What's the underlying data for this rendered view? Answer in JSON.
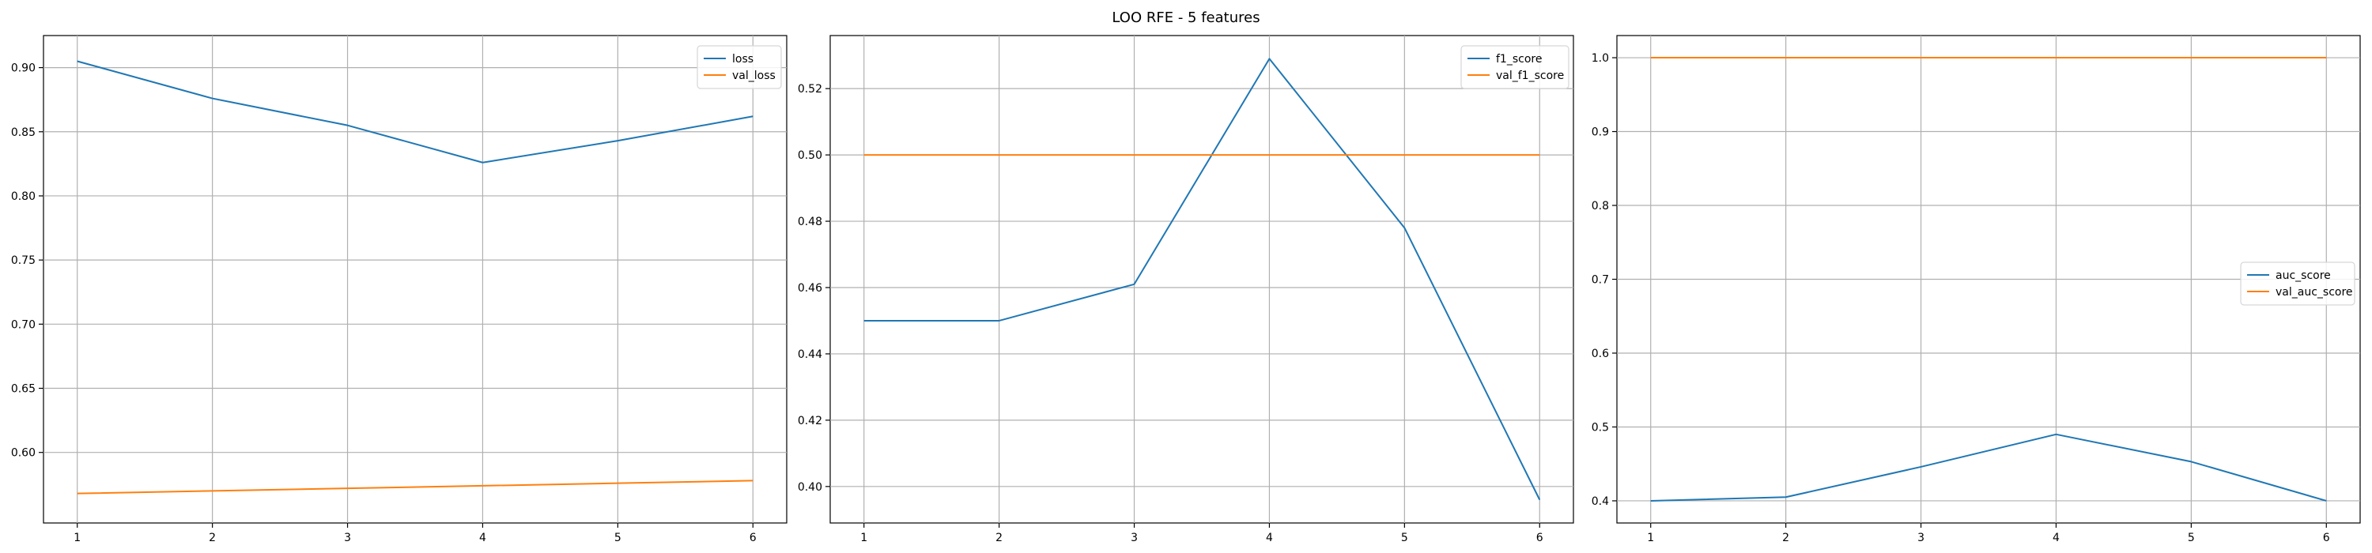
{
  "figure": {
    "suptitle": "LOO RFE - 5 features"
  },
  "chart_data": [
    {
      "type": "line",
      "title": "",
      "xlabel": "",
      "ylabel": "",
      "grid": true,
      "legend_position": "top-right",
      "x": [
        1,
        2,
        3,
        4,
        5,
        6
      ],
      "xlim": [
        0.75,
        6.25
      ],
      "ylim": [
        0.545,
        0.925
      ],
      "xticks": [
        1,
        2,
        3,
        4,
        5,
        6
      ],
      "yticks": [
        0.6,
        0.65,
        0.7,
        0.75,
        0.8,
        0.85,
        0.9
      ],
      "ytick_labels": [
        "0.60",
        "0.65",
        "0.70",
        "0.75",
        "0.80",
        "0.85",
        "0.90"
      ],
      "series": [
        {
          "name": "loss",
          "color": "#1f77b4",
          "values": [
            0.905,
            0.876,
            0.855,
            0.826,
            0.843,
            0.862
          ]
        },
        {
          "name": "val_loss",
          "color": "#ff7f0e",
          "values": [
            0.568,
            0.57,
            0.572,
            0.574,
            0.576,
            0.578
          ]
        }
      ]
    },
    {
      "type": "line",
      "title": "",
      "xlabel": "",
      "ylabel": "",
      "grid": true,
      "legend_position": "top-right",
      "x": [
        1,
        2,
        3,
        4,
        5,
        6
      ],
      "xlim": [
        0.75,
        6.25
      ],
      "ylim": [
        0.389,
        0.536
      ],
      "xticks": [
        1,
        2,
        3,
        4,
        5,
        6
      ],
      "yticks": [
        0.4,
        0.42,
        0.44,
        0.46,
        0.48,
        0.5,
        0.52
      ],
      "ytick_labels": [
        "0.40",
        "0.42",
        "0.44",
        "0.46",
        "0.48",
        "0.50",
        "0.52"
      ],
      "series": [
        {
          "name": "f1_score",
          "color": "#1f77b4",
          "values": [
            0.45,
            0.45,
            0.461,
            0.529,
            0.478,
            0.396
          ]
        },
        {
          "name": "val_f1_score",
          "color": "#ff7f0e",
          "values": [
            0.5,
            0.5,
            0.5,
            0.5,
            0.5,
            0.5
          ]
        }
      ]
    },
    {
      "type": "line",
      "title": "",
      "xlabel": "",
      "ylabel": "",
      "grid": true,
      "legend_position": "center-right",
      "x": [
        1,
        2,
        3,
        4,
        5,
        6
      ],
      "xlim": [
        0.75,
        6.25
      ],
      "ylim": [
        0.37,
        1.03
      ],
      "xticks": [
        1,
        2,
        3,
        4,
        5,
        6
      ],
      "yticks": [
        0.4,
        0.5,
        0.6,
        0.7,
        0.8,
        0.9,
        1.0
      ],
      "ytick_labels": [
        "0.4",
        "0.5",
        "0.6",
        "0.7",
        "0.8",
        "0.9",
        "1.0"
      ],
      "series": [
        {
          "name": "auc_score",
          "color": "#1f77b4",
          "values": [
            0.4,
            0.405,
            0.446,
            0.49,
            0.453,
            0.4
          ]
        },
        {
          "name": "val_auc_score",
          "color": "#ff7f0e",
          "values": [
            1.0,
            1.0,
            1.0,
            1.0,
            1.0,
            1.0
          ]
        }
      ]
    }
  ]
}
